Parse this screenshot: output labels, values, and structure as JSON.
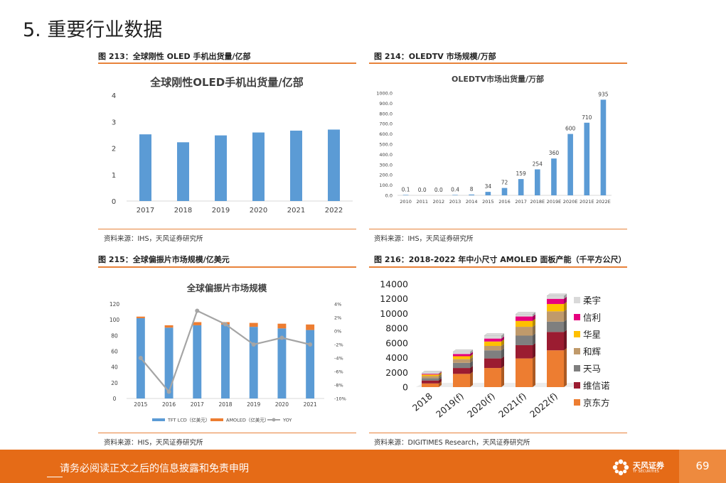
{
  "page_title": "5. 重要行业数据",
  "colors": {
    "accent": "#e8823a",
    "footer": "#e56b17",
    "bar_blue": "#5b9bd5",
    "bar_orange": "#ed7d31",
    "yoy_gray": "#a5a5a5"
  },
  "figures": [
    {
      "title": "图 213：全球刚性 OLED 手机出货量/亿部",
      "source": "资料来源：IHS，天风证券研究所"
    },
    {
      "title": "图 214：OLEDTV 市场规模/万部",
      "source": "资料来源：IHS，天风证券研究所"
    },
    {
      "title": "图 215：全球偏振片市场规模/亿美元",
      "source": "资料来源：HIS，天风证券研究所"
    },
    {
      "title": "图 216：2018-2022 年中小尺寸 AMOLED 面板产能（千平方公尺）",
      "source": "资料来源：DIGITIMES Research，天风证券研究所"
    }
  ],
  "chart_data": [
    {
      "type": "bar",
      "title": "全球刚性OLED手机出货量/亿部",
      "categories": [
        "2017",
        "2018",
        "2019",
        "2020",
        "2021",
        "2022"
      ],
      "values": [
        2.52,
        2.22,
        2.48,
        2.59,
        2.66,
        2.7
      ],
      "ylim": [
        0,
        4
      ],
      "yticks": [
        "0",
        "1",
        "2",
        "3",
        "4"
      ],
      "grid": false
    },
    {
      "type": "bar",
      "title": "OLEDTV市场出货量/万部",
      "categories": [
        "2010",
        "2011",
        "2012",
        "2013",
        "2014",
        "2015",
        "2016",
        "2017",
        "2018E",
        "2019E",
        "2020E",
        "2021E",
        "2022E"
      ],
      "values": [
        0.1,
        0.0,
        0.0,
        0.4,
        8,
        34,
        72,
        159,
        254,
        360,
        600,
        710,
        935
      ],
      "data_labels": [
        "0.1",
        "0.0",
        "0.0",
        "0.4",
        "8",
        "34",
        "72",
        "159",
        "254",
        "360",
        "600",
        "710",
        "935"
      ],
      "ylim": [
        0,
        1000
      ],
      "yticks": [
        "0.0",
        "100.0",
        "200.0",
        "300.0",
        "400.0",
        "500.0",
        "600.0",
        "700.0",
        "800.0",
        "900.0",
        "1000.0"
      ],
      "grid": false
    },
    {
      "type": "bar",
      "title": "全球偏振片市场规模",
      "categories": [
        "2015",
        "2016",
        "2017",
        "2018",
        "2019",
        "2020",
        "2021"
      ],
      "series": [
        {
          "name": "TFT LCD（亿美元）",
          "values": [
            102,
            90,
            93,
            94,
            91,
            89,
            87
          ],
          "color": "#5b9bd5"
        },
        {
          "name": "AMOLED（亿美元）",
          "values": [
            2,
            3,
            4,
            3,
            5,
            6,
            7
          ],
          "color": "#ed7d31"
        },
        {
          "name": "YOY",
          "values": [
            -4,
            -9,
            3,
            1,
            -2,
            -1,
            -2
          ],
          "color": "#a5a5a5",
          "axis": "right",
          "kind": "line"
        }
      ],
      "ylim": [
        0,
        120
      ],
      "yticks": [
        "0",
        "20",
        "40",
        "60",
        "80",
        "100",
        "120"
      ],
      "y2lim": [
        -10,
        4
      ],
      "y2ticks": [
        "-10%",
        "-8%",
        "-6%",
        "-4%",
        "-2%",
        "0%",
        "2%",
        "4%"
      ],
      "legend": "bottom"
    },
    {
      "type": "bar",
      "stacked": true,
      "categories": [
        "2018",
        "2019(f)",
        "2020(f)",
        "2021(f)",
        "2022(f)"
      ],
      "series": [
        {
          "name": "京东方",
          "values": [
            500,
            1800,
            2600,
            3900,
            5000
          ],
          "color": "#ed7d31"
        },
        {
          "name": "维信诺",
          "values": [
            400,
            800,
            1300,
            1800,
            2500
          ],
          "color": "#9b1c31"
        },
        {
          "name": "天马",
          "values": [
            300,
            700,
            1100,
            1300,
            1400
          ],
          "color": "#7f7f7f"
        },
        {
          "name": "和辉",
          "values": [
            300,
            500,
            600,
            1200,
            1400
          ],
          "color": "#c09a6b"
        },
        {
          "name": "华星",
          "values": [
            200,
            400,
            600,
            800,
            1000
          ],
          "color": "#ffc000"
        },
        {
          "name": "信利",
          "values": [
            100,
            300,
            400,
            600,
            700
          ],
          "color": "#e6007e"
        },
        {
          "name": "柔宇",
          "values": [
            100,
            300,
            400,
            300,
            400
          ],
          "color": "#d9d9d9"
        }
      ],
      "ylim": [
        0,
        14000
      ],
      "yticks": [
        "0",
        "2000",
        "4000",
        "6000",
        "8000",
        "10000",
        "12000",
        "14000"
      ],
      "legend": "right"
    }
  ],
  "footer": {
    "notice": "请务必阅读正文之后的信息披露和免责申明",
    "logo_text": "天风证券",
    "logo_sub": "TF SECURITIES",
    "page_number": "69"
  }
}
